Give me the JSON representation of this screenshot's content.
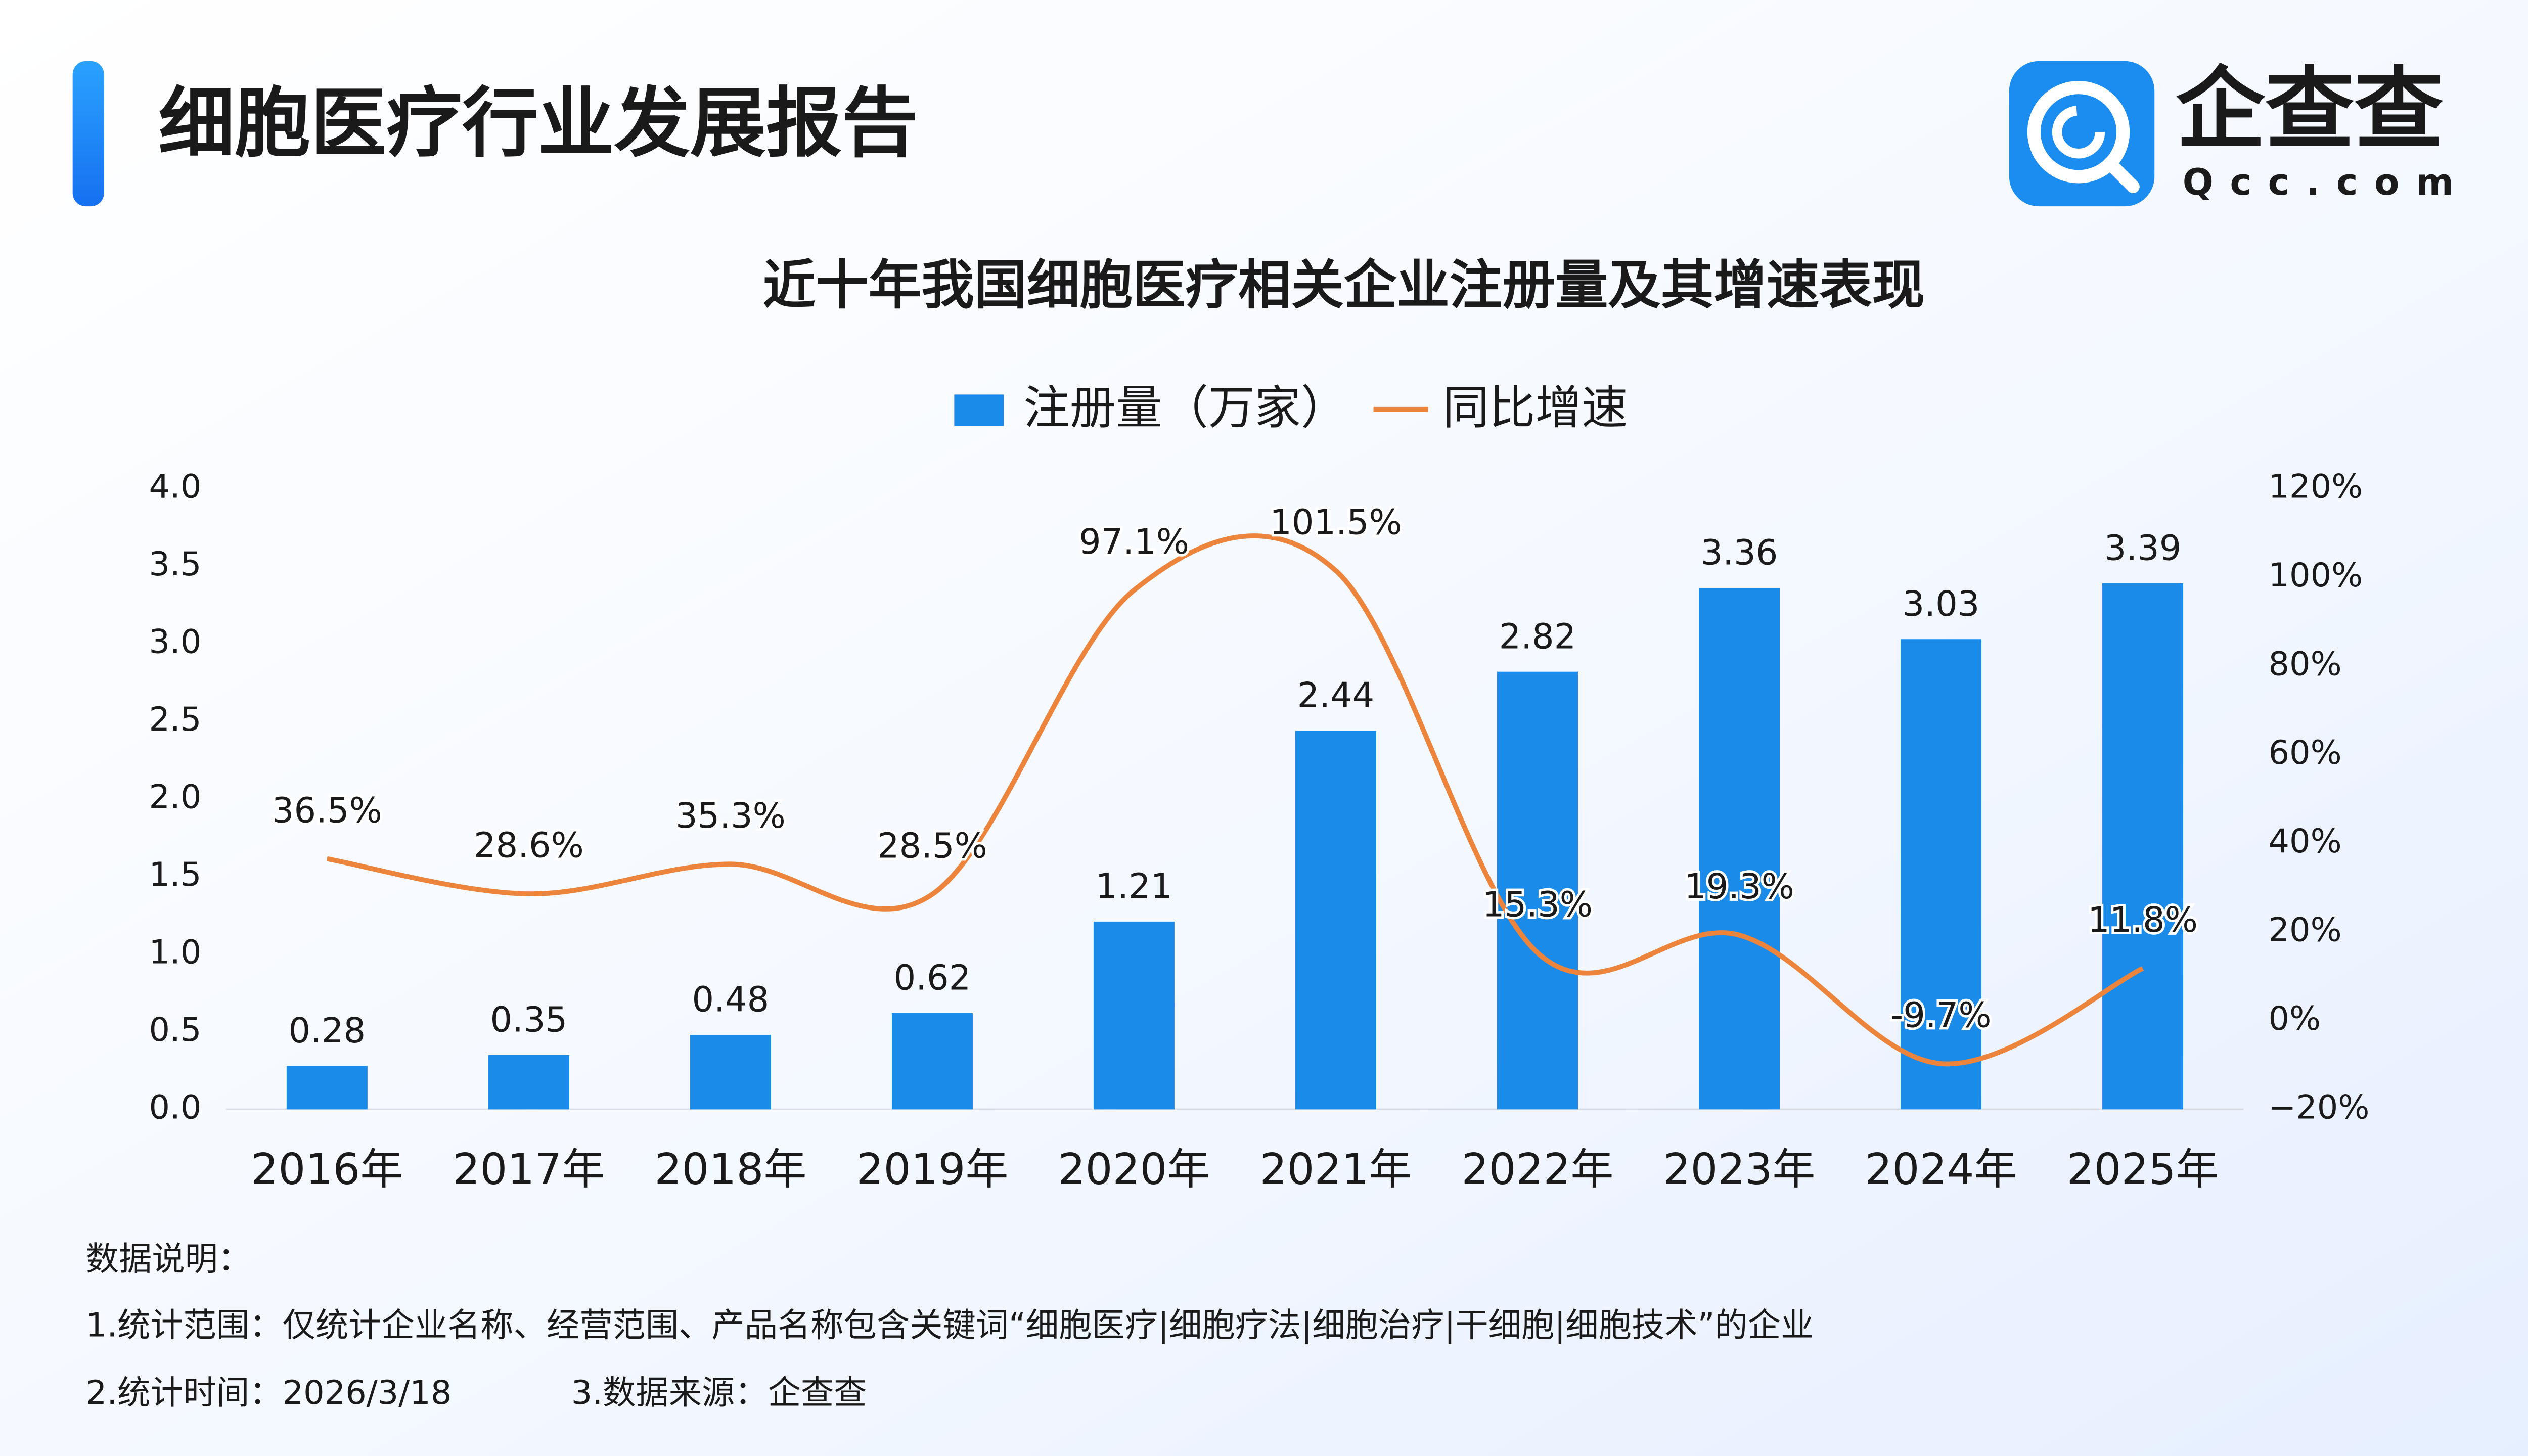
{
  "header": {
    "title": "细胞医疗行业发展报告",
    "brand": "企查查",
    "brand_url": "Qcc.com"
  },
  "chart_data": {
    "type": "bar",
    "title": "近十年我国细胞医疗相关企业注册量及其增速表现",
    "categories": [
      "2016年",
      "2017年",
      "2018年",
      "2019年",
      "2020年",
      "2021年",
      "2022年",
      "2023年",
      "2024年",
      "2025年"
    ],
    "series": [
      {
        "name": "注册量（万家）",
        "type": "bar",
        "color": "#1a8be8",
        "values": [
          0.28,
          0.35,
          0.48,
          0.62,
          1.21,
          2.44,
          2.82,
          3.36,
          3.03,
          3.39
        ]
      },
      {
        "name": "同比增速",
        "type": "line",
        "axis": "y2",
        "color": "#ec843c",
        "values": [
          36.5,
          28.6,
          35.3,
          28.5,
          97.1,
          101.5,
          15.3,
          19.3,
          -9.7,
          11.8
        ],
        "value_labels": [
          "36.5%",
          "28.6%",
          "35.3%",
          "28.5%",
          "97.1%",
          "101.5%",
          "15.3%",
          "19.3%",
          "-9.7%",
          "11.8%"
        ]
      }
    ],
    "ylim": [
      0,
      4
    ],
    "yticks": [
      {
        "value": 0,
        "label": "0.0"
      },
      0.5,
      {
        "value": 1,
        "label": "1.0"
      },
      1.5,
      {
        "value": 2,
        "label": "2.0"
      },
      2.5,
      {
        "value": 3,
        "label": "3.0"
      },
      3.5,
      {
        "value": 4,
        "label": "4.0"
      }
    ],
    "y2lim": [
      -20,
      120
    ],
    "y2ticks": [
      {
        "value": -20,
        "label": "−20%"
      },
      {
        "value": 0,
        "label": "0%"
      },
      {
        "value": 20,
        "label": "20%"
      },
      {
        "value": 40,
        "label": "40%"
      },
      {
        "value": 60,
        "label": "60%"
      },
      {
        "value": 80,
        "label": "80%"
      },
      {
        "value": 100,
        "label": "100%"
      },
      {
        "value": 120,
        "label": "120%"
      }
    ],
    "legend": "top",
    "grid": false
  },
  "notes": {
    "heading": "数据说明：",
    "scope": "1.统计范围：仅统计企业名称、经营范围、产品名称包含关键词“细胞医疗|细胞疗法|细胞治疗|干细胞|细胞技术”的企业",
    "time": "2.统计时间：2026/3/18",
    "source": "3.数据来源：企查查"
  }
}
